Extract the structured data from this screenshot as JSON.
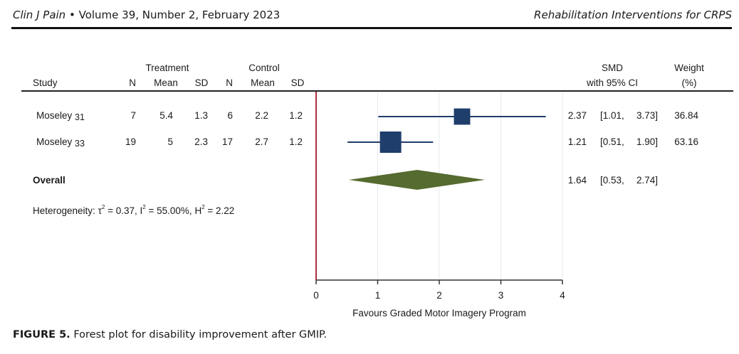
{
  "running_head": {
    "journal": "Clin J Pain",
    "bullet": "•",
    "issue": "Volume 39, Number 2, February 2023",
    "section": "Rehabilitation Interventions for CRPS"
  },
  "caption": {
    "label": "FIGURE 5.",
    "text": "Forest plot for disability improvement after GMIP."
  },
  "chart_data": {
    "type": "forest",
    "title": "",
    "xlabel": "Favours Graded Motor Imagery Program",
    "xlim": [
      0,
      4
    ],
    "xticks": [
      "0",
      "1",
      "2",
      "3",
      "4"
    ],
    "null_line": 0,
    "grid": true,
    "colors": {
      "study_marker": "#1f3e6b",
      "overall_diamond": "#556b2f",
      "null_line": "#b03040"
    },
    "headers": {
      "study": "Study",
      "treatment_group": "Treatment",
      "control_group": "Control",
      "n": "N",
      "mean": "Mean",
      "sd": "SD",
      "smd_line1": "SMD",
      "smd_line2": "with 95% CI",
      "weight_line1": "Weight",
      "weight_line2": "(%)"
    },
    "studies": [
      {
        "name": "Moseley",
        "ref": "31",
        "t_n": "7",
        "t_mean": "5.4",
        "t_sd": "1.3",
        "c_n": "6",
        "c_mean": "2.2",
        "c_sd": "1.2",
        "smd": 2.37,
        "lo": 1.01,
        "hi": 3.73,
        "smd_text": "2.37",
        "ci_lo_text": "[1.01,",
        "ci_hi_text": "3.73]",
        "weight": 36.84,
        "weight_text": "36.84"
      },
      {
        "name": "Moseley",
        "ref": "33",
        "t_n": "19",
        "t_mean": "5",
        "t_sd": "2.3",
        "c_n": "17",
        "c_mean": "2.7",
        "c_sd": "1.2",
        "smd": 1.21,
        "lo": 0.51,
        "hi": 1.9,
        "smd_text": "1.21",
        "ci_lo_text": "[0.51,",
        "ci_hi_text": "1.90]",
        "weight": 63.16,
        "weight_text": "63.16"
      }
    ],
    "overall": {
      "label": "Overall",
      "smd": 1.64,
      "lo": 0.53,
      "hi": 2.74,
      "smd_text": "1.64",
      "ci_lo_text": "[0.53,",
      "ci_hi_text": "2.74]"
    },
    "heterogeneity": {
      "prefix": "Heterogeneity: ",
      "tau_sym": "τ",
      "tau_val": " = 0.37, ",
      "i_sym": "I",
      "i_val": " = 55.00%, ",
      "h_sym": "H",
      "h_val": " = 2.22",
      "sup": "2"
    }
  }
}
